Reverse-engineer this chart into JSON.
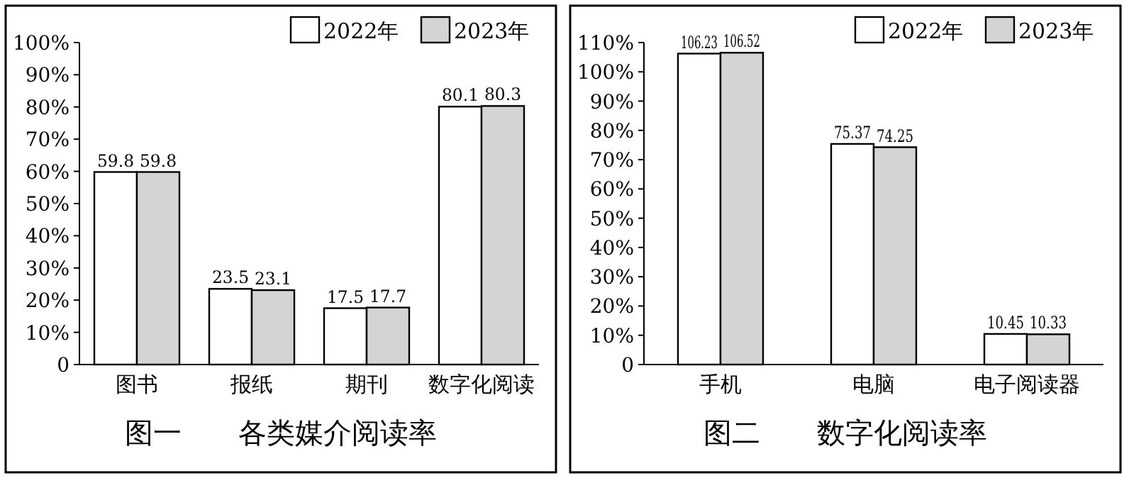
{
  "chart_data": [
    {
      "type": "bar",
      "title": "图一　　各类媒介阅读率",
      "categories": [
        "图书",
        "报纸",
        "期刊",
        "数字化阅读"
      ],
      "series": [
        {
          "name": "2022年",
          "color": "#ffffff",
          "values": [
            59.8,
            23.5,
            17.5,
            80.1
          ]
        },
        {
          "name": "2023年",
          "color": "#d4d4d4",
          "values": [
            59.8,
            23.1,
            17.7,
            80.3
          ]
        }
      ],
      "ylim": [
        0,
        100
      ],
      "yticks": [
        0,
        {
          "value": 10,
          "label": "10%"
        },
        {
          "value": 20,
          "label": "20%"
        },
        {
          "value": 30,
          "label": "30%"
        },
        {
          "value": 40,
          "label": "40%"
        },
        {
          "value": 50,
          "label": "50%"
        },
        {
          "value": 60,
          "label": "60%"
        },
        {
          "value": 70,
          "label": "70%"
        },
        {
          "value": 80,
          "label": "80%"
        },
        {
          "value": 90,
          "label": "90%"
        },
        {
          "value": 100,
          "label": "100%"
        }
      ],
      "data_labels": true,
      "legend": "top right",
      "grid": false
    },
    {
      "type": "bar",
      "title": "图二　　数字化阅读率",
      "categories": [
        "手机",
        "电脑",
        "电子阅读器"
      ],
      "series": [
        {
          "name": "2022年",
          "color": "#ffffff",
          "values": [
            106.23,
            75.37,
            10.45
          ]
        },
        {
          "name": "2023年",
          "color": "#d4d4d4",
          "values": [
            106.52,
            74.25,
            10.33
          ]
        }
      ],
      "ylim": [
        0,
        110
      ],
      "yticks": [
        0,
        {
          "value": 10,
          "label": "10%"
        },
        {
          "value": 20,
          "label": "20%"
        },
        {
          "value": 30,
          "label": "30%"
        },
        {
          "value": 40,
          "label": "40%"
        },
        {
          "value": 50,
          "label": "50%"
        },
        {
          "value": 60,
          "label": "60%"
        },
        {
          "value": 70,
          "label": "70%"
        },
        {
          "value": 80,
          "label": "80%"
        },
        {
          "value": 90,
          "label": "90%"
        },
        {
          "value": 100,
          "label": "100%"
        },
        {
          "value": 110,
          "label": "110%"
        }
      ],
      "data_labels": true,
      "legend": "top right",
      "grid": false
    }
  ]
}
